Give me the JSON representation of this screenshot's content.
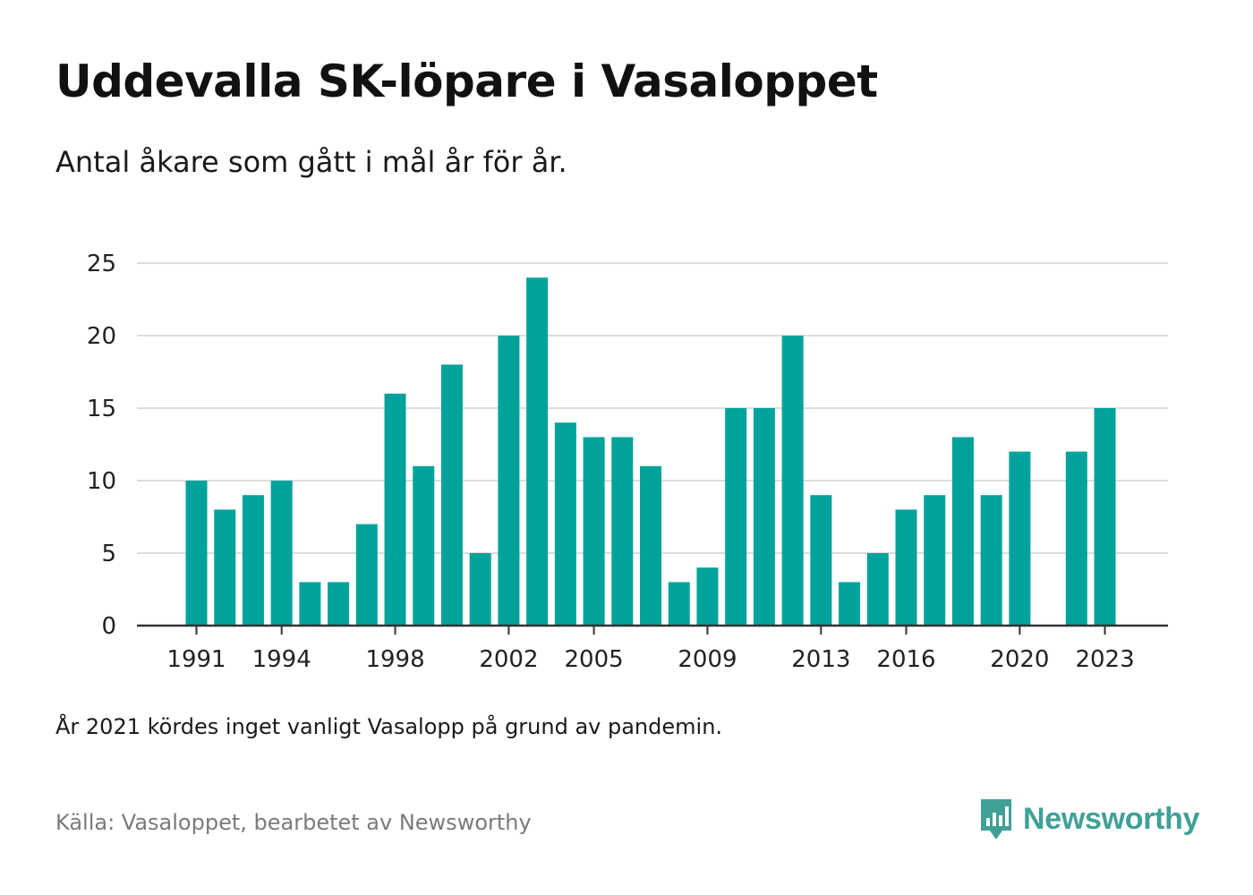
{
  "header": {
    "title": "Uddevalla SK-löpare i Vasaloppet",
    "subtitle": "Antal åkare som gått i mål år för år."
  },
  "footer": {
    "note": "År 2021 kördes inget vanligt Vasalopp på grund av pandemin.",
    "source": "Källa: Vasaloppet, bearbetet av Newsworthy",
    "brand": "Newsworthy",
    "brand_icon": "newsworthy-logo-icon"
  },
  "colors": {
    "bar": "#00a39b",
    "grid": "#dddddd",
    "axis": "#333333",
    "brand": "#3fa195"
  },
  "chart_data": {
    "type": "bar",
    "title": "Uddevalla SK-löpare i Vasaloppet",
    "subtitle": "Antal åkare som gått i mål år för år.",
    "xlabel": "",
    "ylabel": "",
    "ylim": [
      0,
      25
    ],
    "yticks": [
      0,
      5,
      10,
      15,
      20,
      25
    ],
    "xticks": [
      "1991",
      "1994",
      "1998",
      "2002",
      "2005",
      "2009",
      "2013",
      "2016",
      "2020",
      "2023"
    ],
    "grid": true,
    "categories": [
      "1991",
      "1992",
      "1993",
      "1994",
      "1995",
      "1996",
      "1997",
      "1998",
      "1999",
      "2000",
      "2001",
      "2002",
      "2003",
      "2004",
      "2005",
      "2006",
      "2007",
      "2008",
      "2009",
      "2010",
      "2011",
      "2012",
      "2013",
      "2014",
      "2015",
      "2016",
      "2017",
      "2018",
      "2019",
      "2020",
      "2021",
      "2022",
      "2023"
    ],
    "values": [
      10,
      8,
      9,
      10,
      3,
      3,
      7,
      16,
      11,
      18,
      5,
      20,
      24,
      14,
      13,
      13,
      11,
      3,
      4,
      15,
      15,
      20,
      9,
      3,
      5,
      8,
      9,
      13,
      9,
      12,
      null,
      12,
      15
    ]
  }
}
